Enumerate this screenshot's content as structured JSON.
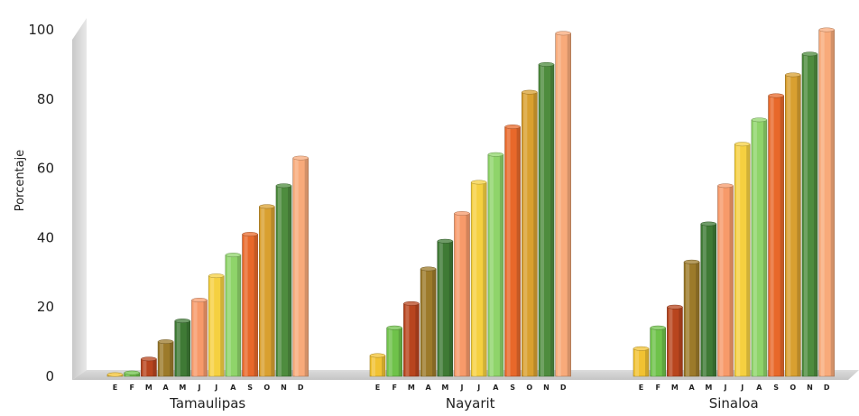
{
  "chart_data": {
    "type": "bar",
    "ylabel": "Porcentaje",
    "ylim": [
      0,
      100
    ],
    "yticks": [
      0,
      20,
      40,
      60,
      80,
      100
    ],
    "categories": [
      "E",
      "F",
      "M",
      "A",
      "M",
      "J",
      "J",
      "A",
      "S",
      "O",
      "N",
      "D"
    ],
    "groups": [
      {
        "name": "Tamaulipas",
        "values": [
          0.5,
          1,
          5,
          10,
          16,
          22,
          29,
          35,
          41,
          49,
          55,
          63
        ]
      },
      {
        "name": "Nayarit",
        "values": [
          6,
          14,
          21,
          31,
          39,
          47,
          56,
          64,
          72,
          82,
          90,
          99
        ]
      },
      {
        "name": "Sinaloa",
        "values": [
          8,
          14,
          20,
          33,
          44,
          55,
          67,
          74,
          81,
          87,
          93,
          100
        ]
      }
    ],
    "colors": [
      "#f1c232",
      "#6fc24a",
      "#b8451e",
      "#9c7a2a",
      "#3f7a35",
      "#f79a6a",
      "#f5d040",
      "#8fd46a",
      "#e8682a",
      "#d9a030",
      "#4e8c3e",
      "#f8aa7a"
    ],
    "grid": false,
    "legend": "none"
  }
}
